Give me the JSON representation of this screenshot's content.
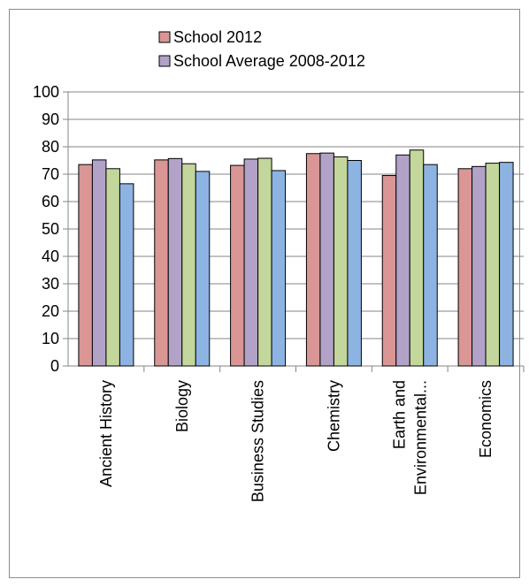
{
  "chart_data": {
    "type": "bar",
    "categories": [
      "Ancient History",
      "Biology",
      "Business Studies",
      "Chemistry",
      "Earth and Environmental...",
      "Economics"
    ],
    "category_lines": [
      [
        "Ancient History"
      ],
      [
        "Biology"
      ],
      [
        "Business Studies"
      ],
      [
        "Chemistry"
      ],
      [
        "Earth and",
        "Environmental..."
      ],
      [
        "Economics"
      ]
    ],
    "series": [
      {
        "name": "School 2012",
        "color": "#d99694",
        "values": [
          73.5,
          75.2,
          73.2,
          77.5,
          69.5,
          72.0
        ]
      },
      {
        "name": "School Average 2008-2012",
        "color": "#b3a2c7",
        "values": [
          75.2,
          75.7,
          75.5,
          77.7,
          77.0,
          72.8
        ]
      },
      {
        "color": "#c3d69b",
        "values": [
          72.0,
          73.8,
          75.8,
          76.3,
          78.8,
          74.0
        ]
      },
      {
        "color": "#8db3e2",
        "values": [
          66.5,
          71.0,
          71.3,
          75.0,
          73.5,
          74.3
        ]
      }
    ],
    "ylim": [
      0,
      100
    ],
    "yticks": [
      0,
      10,
      20,
      30,
      40,
      50,
      60,
      70,
      80,
      90,
      100
    ],
    "grid": true,
    "legend_position": "top"
  }
}
